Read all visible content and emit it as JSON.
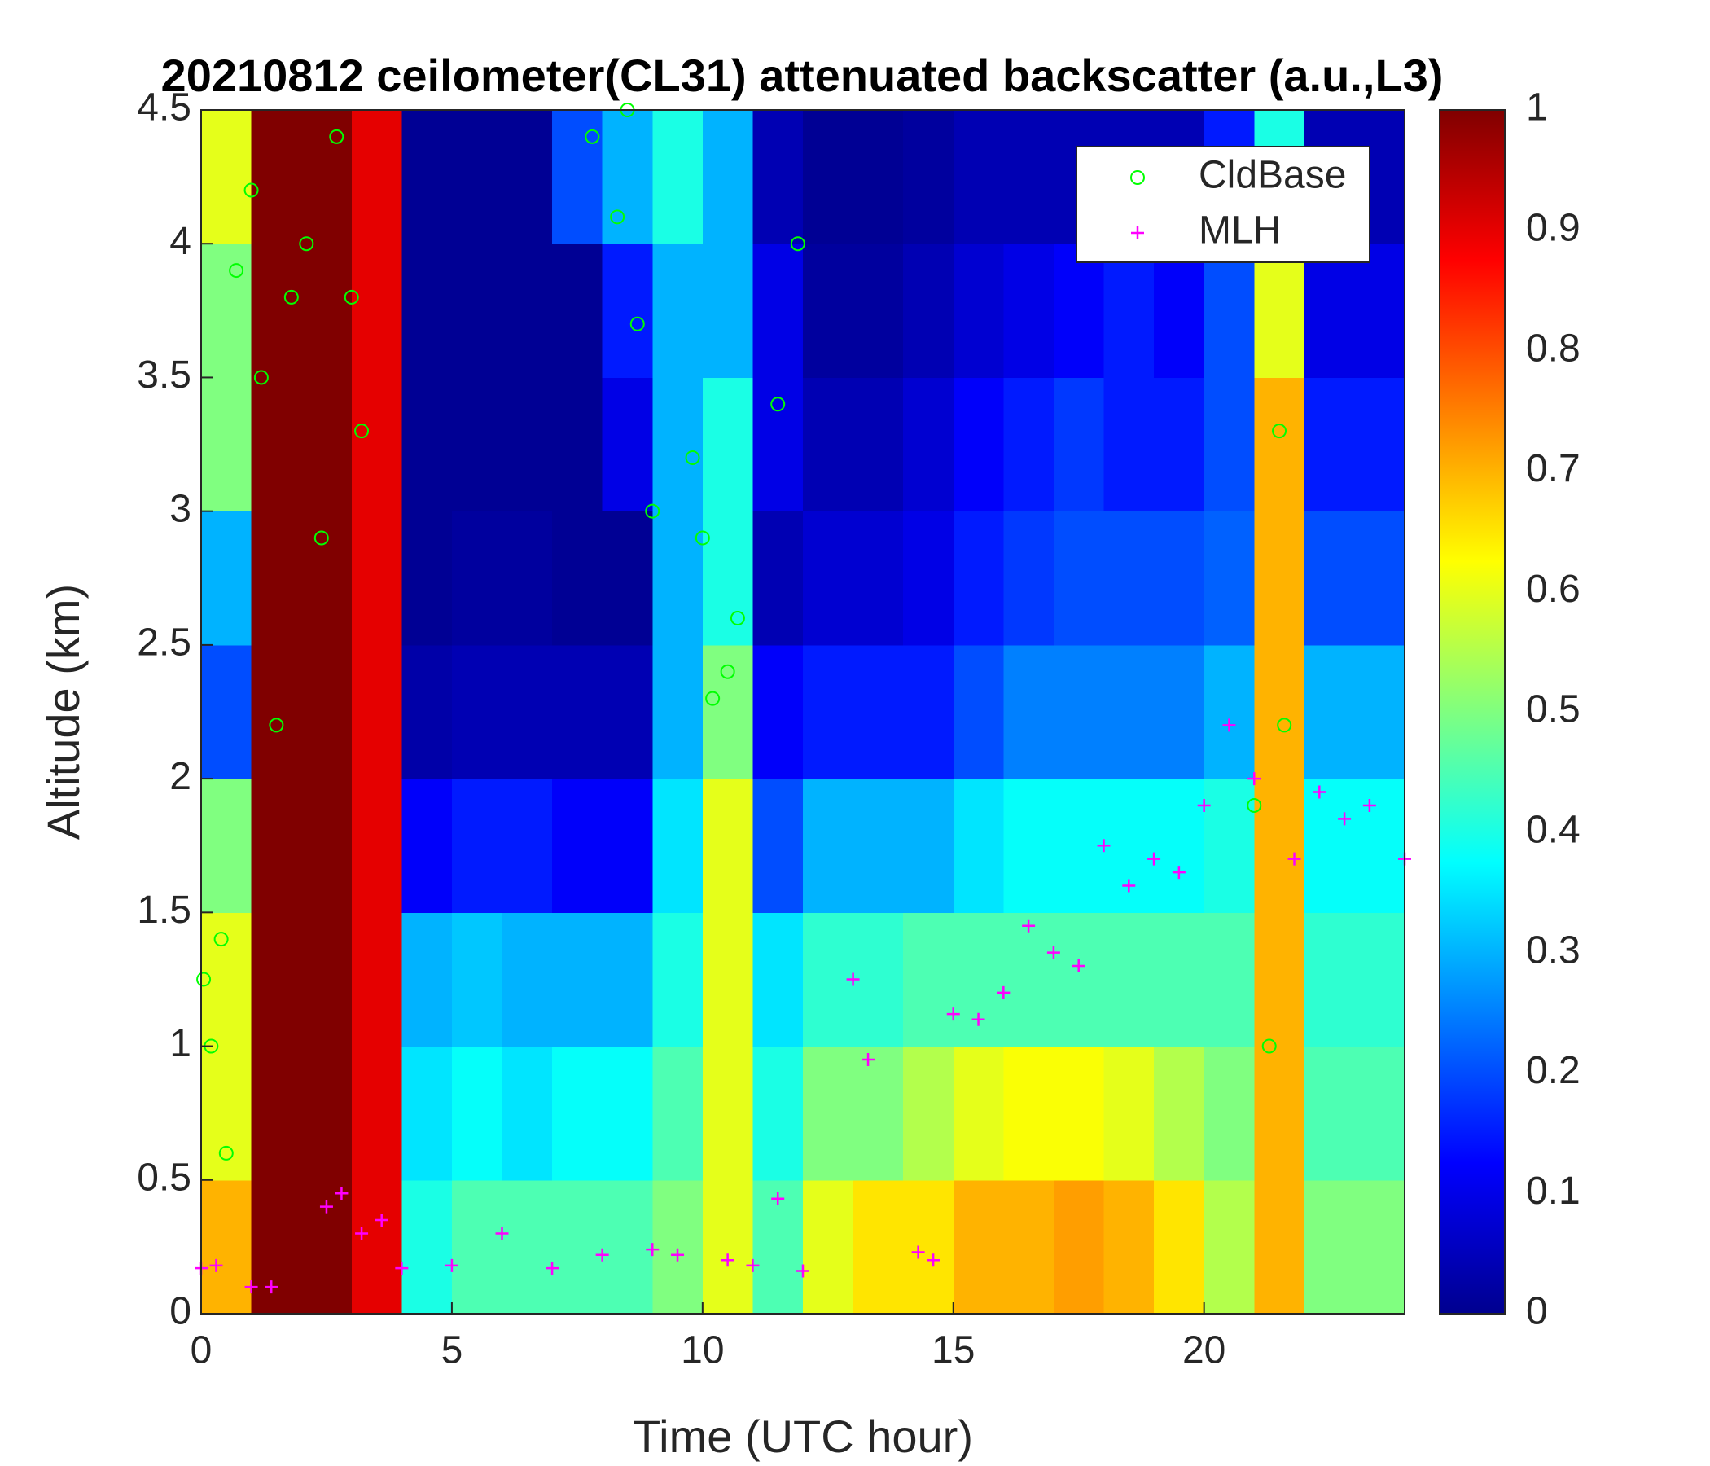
{
  "chart_data": {
    "type": "heatmap",
    "title": "20210812 ceilometer(CL31) attenuated backscatter (a.u.,L3)",
    "xlabel": "Time (UTC hour)",
    "ylabel": "Altitude (km)",
    "x": [
      0.5,
      1.5,
      2.5,
      3.5,
      4.5,
      5.5,
      6.5,
      7.5,
      8.5,
      9.5,
      10.5,
      11.5,
      12.5,
      13.5,
      14.5,
      15.5,
      16.5,
      17.5,
      18.5,
      19.5,
      20.5,
      21.5,
      22.5,
      23.5
    ],
    "y": [
      0.25,
      0.75,
      1.25,
      1.75,
      2.25,
      2.75,
      3.25,
      3.75,
      4.25
    ],
    "z": [
      [
        0.7,
        1,
        1,
        0.9,
        0.4,
        0.45,
        0.45,
        0.45,
        0.45,
        0.5,
        0.6,
        0.45,
        0.6,
        0.65,
        0.65,
        0.7,
        0.7,
        0.72,
        0.7,
        0.65,
        0.55,
        0.7,
        0.5,
        0.5
      ],
      [
        0.6,
        1,
        1,
        0.9,
        0.35,
        0.38,
        0.35,
        0.38,
        0.38,
        0.45,
        0.6,
        0.4,
        0.5,
        0.5,
        0.55,
        0.6,
        0.62,
        0.62,
        0.6,
        0.55,
        0.5,
        0.7,
        0.45,
        0.45
      ],
      [
        0.6,
        1,
        1,
        0.9,
        0.3,
        0.32,
        0.3,
        0.3,
        0.3,
        0.4,
        0.6,
        0.35,
        0.42,
        0.42,
        0.45,
        0.45,
        0.45,
        0.45,
        0.45,
        0.45,
        0.45,
        0.7,
        0.42,
        0.42
      ],
      [
        0.5,
        1,
        1,
        0.9,
        0.12,
        0.15,
        0.15,
        0.12,
        0.12,
        0.35,
        0.6,
        0.2,
        0.3,
        0.3,
        0.3,
        0.35,
        0.38,
        0.38,
        0.38,
        0.38,
        0.4,
        0.7,
        0.38,
        0.38
      ],
      [
        0.2,
        1,
        1,
        0.9,
        0.04,
        0.05,
        0.05,
        0.05,
        0.05,
        0.3,
        0.5,
        0.12,
        0.15,
        0.15,
        0.15,
        0.2,
        0.25,
        0.25,
        0.25,
        0.25,
        0.3,
        0.7,
        0.3,
        0.3
      ],
      [
        0.3,
        1,
        1,
        0.9,
        0.02,
        0.03,
        0.03,
        0.02,
        0.02,
        0.3,
        0.4,
        0.05,
        0.08,
        0.08,
        0.1,
        0.15,
        0.18,
        0.2,
        0.2,
        0.2,
        0.22,
        0.7,
        0.2,
        0.2
      ],
      [
        0.5,
        1,
        1,
        0.9,
        0.02,
        0.02,
        0.02,
        0.02,
        0.1,
        0.3,
        0.4,
        0.1,
        0.05,
        0.05,
        0.08,
        0.12,
        0.15,
        0.18,
        0.15,
        0.15,
        0.2,
        0.7,
        0.15,
        0.15
      ],
      [
        0.5,
        1,
        1,
        0.9,
        0.02,
        0.02,
        0.02,
        0.02,
        0.15,
        0.3,
        0.3,
        0.1,
        0.03,
        0.03,
        0.05,
        0.08,
        0.1,
        0.12,
        0.15,
        0.12,
        0.2,
        0.6,
        0.1,
        0.1
      ],
      [
        0.6,
        1,
        1,
        0.9,
        0.02,
        0.02,
        0.02,
        0.2,
        0.3,
        0.4,
        0.3,
        0.05,
        0.02,
        0.02,
        0.03,
        0.05,
        0.05,
        0.05,
        0.05,
        0.05,
        0.15,
        0.4,
        0.05,
        0.05
      ]
    ],
    "colormap": "jet",
    "clim": [
      0,
      1
    ],
    "cticks": [
      0,
      0.1,
      0.2,
      0.3,
      0.4,
      0.5,
      0.6,
      0.7,
      0.8,
      0.9,
      1
    ],
    "xlim": [
      0,
      24
    ],
    "xticks": [
      0,
      5,
      10,
      15,
      20
    ],
    "ylim": [
      0,
      4.5
    ],
    "yticks": [
      0,
      0.5,
      1,
      1.5,
      2,
      2.5,
      3,
      3.5,
      4,
      4.5
    ],
    "legend": "upper right",
    "series": [
      {
        "name": "CldBase",
        "type": "scatter",
        "marker": "circle",
        "color": "#00ff00",
        "x": [
          0.05,
          0.2,
          0.4,
          0.5,
          0.7,
          1.0,
          1.2,
          1.5,
          1.8,
          2.1,
          2.4,
          2.7,
          3.0,
          3.2,
          7.8,
          8.3,
          8.5,
          8.7,
          9.0,
          9.8,
          10.0,
          10.2,
          10.5,
          10.7,
          11.5,
          11.9,
          21.0,
          21.3,
          21.5,
          21.6
        ],
        "values": [
          1.25,
          1.0,
          1.4,
          0.6,
          3.9,
          4.2,
          3.5,
          2.2,
          3.8,
          4.0,
          2.9,
          4.4,
          3.8,
          3.3,
          4.4,
          4.1,
          4.5,
          3.7,
          3.0,
          3.2,
          2.9,
          2.3,
          2.4,
          2.6,
          3.4,
          4.0,
          1.9,
          1.0,
          3.3,
          2.2
        ]
      },
      {
        "name": "MLH",
        "type": "scatter",
        "marker": "plus",
        "color": "#ff00ff",
        "x": [
          0.0,
          0.3,
          1.0,
          1.4,
          2.5,
          2.8,
          3.2,
          3.6,
          4.0,
          5.0,
          6.0,
          7.0,
          8.0,
          9.0,
          9.5,
          10.5,
          11.0,
          11.5,
          12.0,
          13.0,
          13.3,
          14.3,
          14.6,
          15.0,
          15.5,
          16.0,
          16.5,
          17.0,
          17.5,
          18.0,
          18.5,
          19.0,
          19.5,
          20.0,
          20.5,
          21.0,
          21.8,
          22.3,
          22.8,
          23.3,
          24.0
        ],
        "values": [
          0.17,
          0.18,
          0.1,
          0.1,
          0.4,
          0.45,
          0.3,
          0.35,
          0.17,
          0.18,
          0.3,
          0.17,
          0.22,
          0.24,
          0.22,
          0.2,
          0.18,
          0.43,
          0.16,
          1.25,
          0.95,
          0.23,
          0.2,
          1.12,
          1.1,
          1.2,
          1.45,
          1.35,
          1.3,
          1.75,
          1.6,
          1.7,
          1.65,
          1.9,
          2.2,
          2.0,
          1.7,
          1.95,
          1.85,
          1.9,
          1.7
        ]
      }
    ]
  }
}
